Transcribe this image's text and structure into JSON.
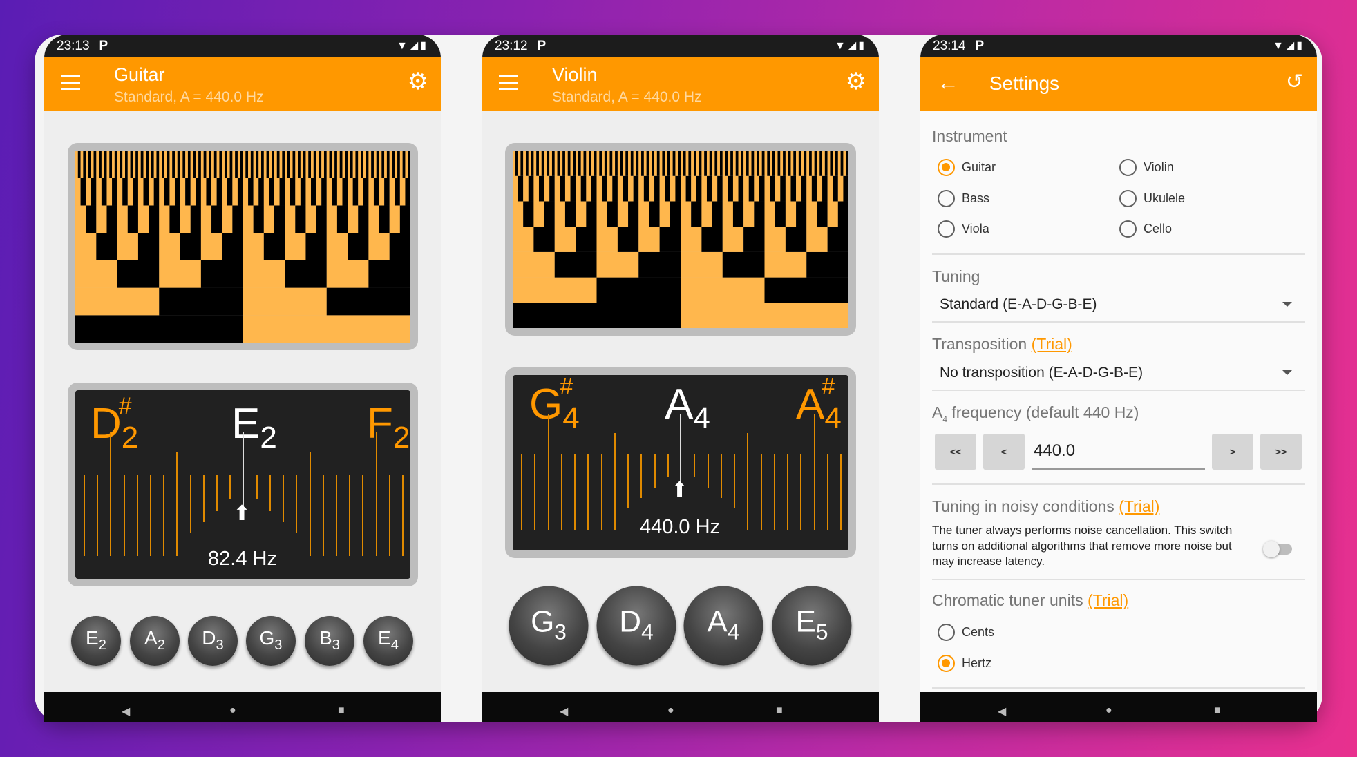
{
  "colors": {
    "accent": "#ff9800",
    "spectrogram_on": "#ffb74d",
    "spectrogram_off": "#000000",
    "tuner_bg": "#212121"
  },
  "phones": [
    {
      "status": {
        "time": "23:13",
        "notification_icon": "P"
      },
      "appbar": {
        "title": "Guitar",
        "subtitle": "Standard, A = 440.0 Hz",
        "menu_icon": "hamburger-icon",
        "action_icon": "gear-icon"
      },
      "tuner": {
        "left_note": "D",
        "left_octave": "2",
        "left_sharp": "#",
        "center_note": "E",
        "center_octave": "2",
        "right_note": "F",
        "right_octave": "2",
        "frequency": "82.4 Hz"
      },
      "strings": [
        {
          "note": "E",
          "octave": "2"
        },
        {
          "note": "A",
          "octave": "2"
        },
        {
          "note": "D",
          "octave": "3"
        },
        {
          "note": "G",
          "octave": "3"
        },
        {
          "note": "B",
          "octave": "3"
        },
        {
          "note": "E",
          "octave": "4"
        }
      ]
    },
    {
      "status": {
        "time": "23:12",
        "notification_icon": "P"
      },
      "appbar": {
        "title": "Violin",
        "subtitle": "Standard, A = 440.0 Hz",
        "menu_icon": "hamburger-icon",
        "action_icon": "gear-icon"
      },
      "tuner": {
        "left_note": "G",
        "left_octave": "4",
        "left_sharp": "#",
        "center_note": "A",
        "center_octave": "4",
        "right_note": "A",
        "right_octave": "4",
        "right_sharp": "#",
        "frequency": "440.0 Hz"
      },
      "strings": [
        {
          "note": "G",
          "octave": "3"
        },
        {
          "note": "D",
          "octave": "4"
        },
        {
          "note": "A",
          "octave": "4"
        },
        {
          "note": "E",
          "octave": "5"
        }
      ]
    },
    {
      "status": {
        "time": "23:14",
        "notification_icon": "P"
      },
      "appbar": {
        "title": "Settings",
        "back_icon": "arrow-back-icon",
        "action_icon": "reset-icon"
      }
    }
  ],
  "settings": {
    "instrument": {
      "label": "Instrument",
      "options": [
        "Guitar",
        "Violin",
        "Bass",
        "Ukulele",
        "Viola",
        "Cello"
      ],
      "selected": "Guitar"
    },
    "tuning": {
      "label": "Tuning",
      "value": "Standard (E-A-D-G-B-E)"
    },
    "transposition": {
      "label": "Transposition",
      "trial": "(Trial)",
      "value": "No transposition (E-A-D-G-B-E)"
    },
    "a4": {
      "label_a": "A",
      "label_sub": "4",
      "label_rest": " frequency (default 440 Hz)",
      "value": "440.0",
      "buttons": [
        "<<",
        "<",
        ">",
        ">>"
      ]
    },
    "noisy": {
      "label": "Tuning in noisy conditions",
      "trial": "(Trial)",
      "description": "The tuner always performs noise cancellation. This switch turns on additional algorithms that remove more noise but may increase latency.",
      "enabled": false
    },
    "units": {
      "label": "Chromatic tuner units",
      "trial": "(Trial)",
      "options": [
        "Cents",
        "Hertz"
      ],
      "selected": "Hertz"
    }
  }
}
